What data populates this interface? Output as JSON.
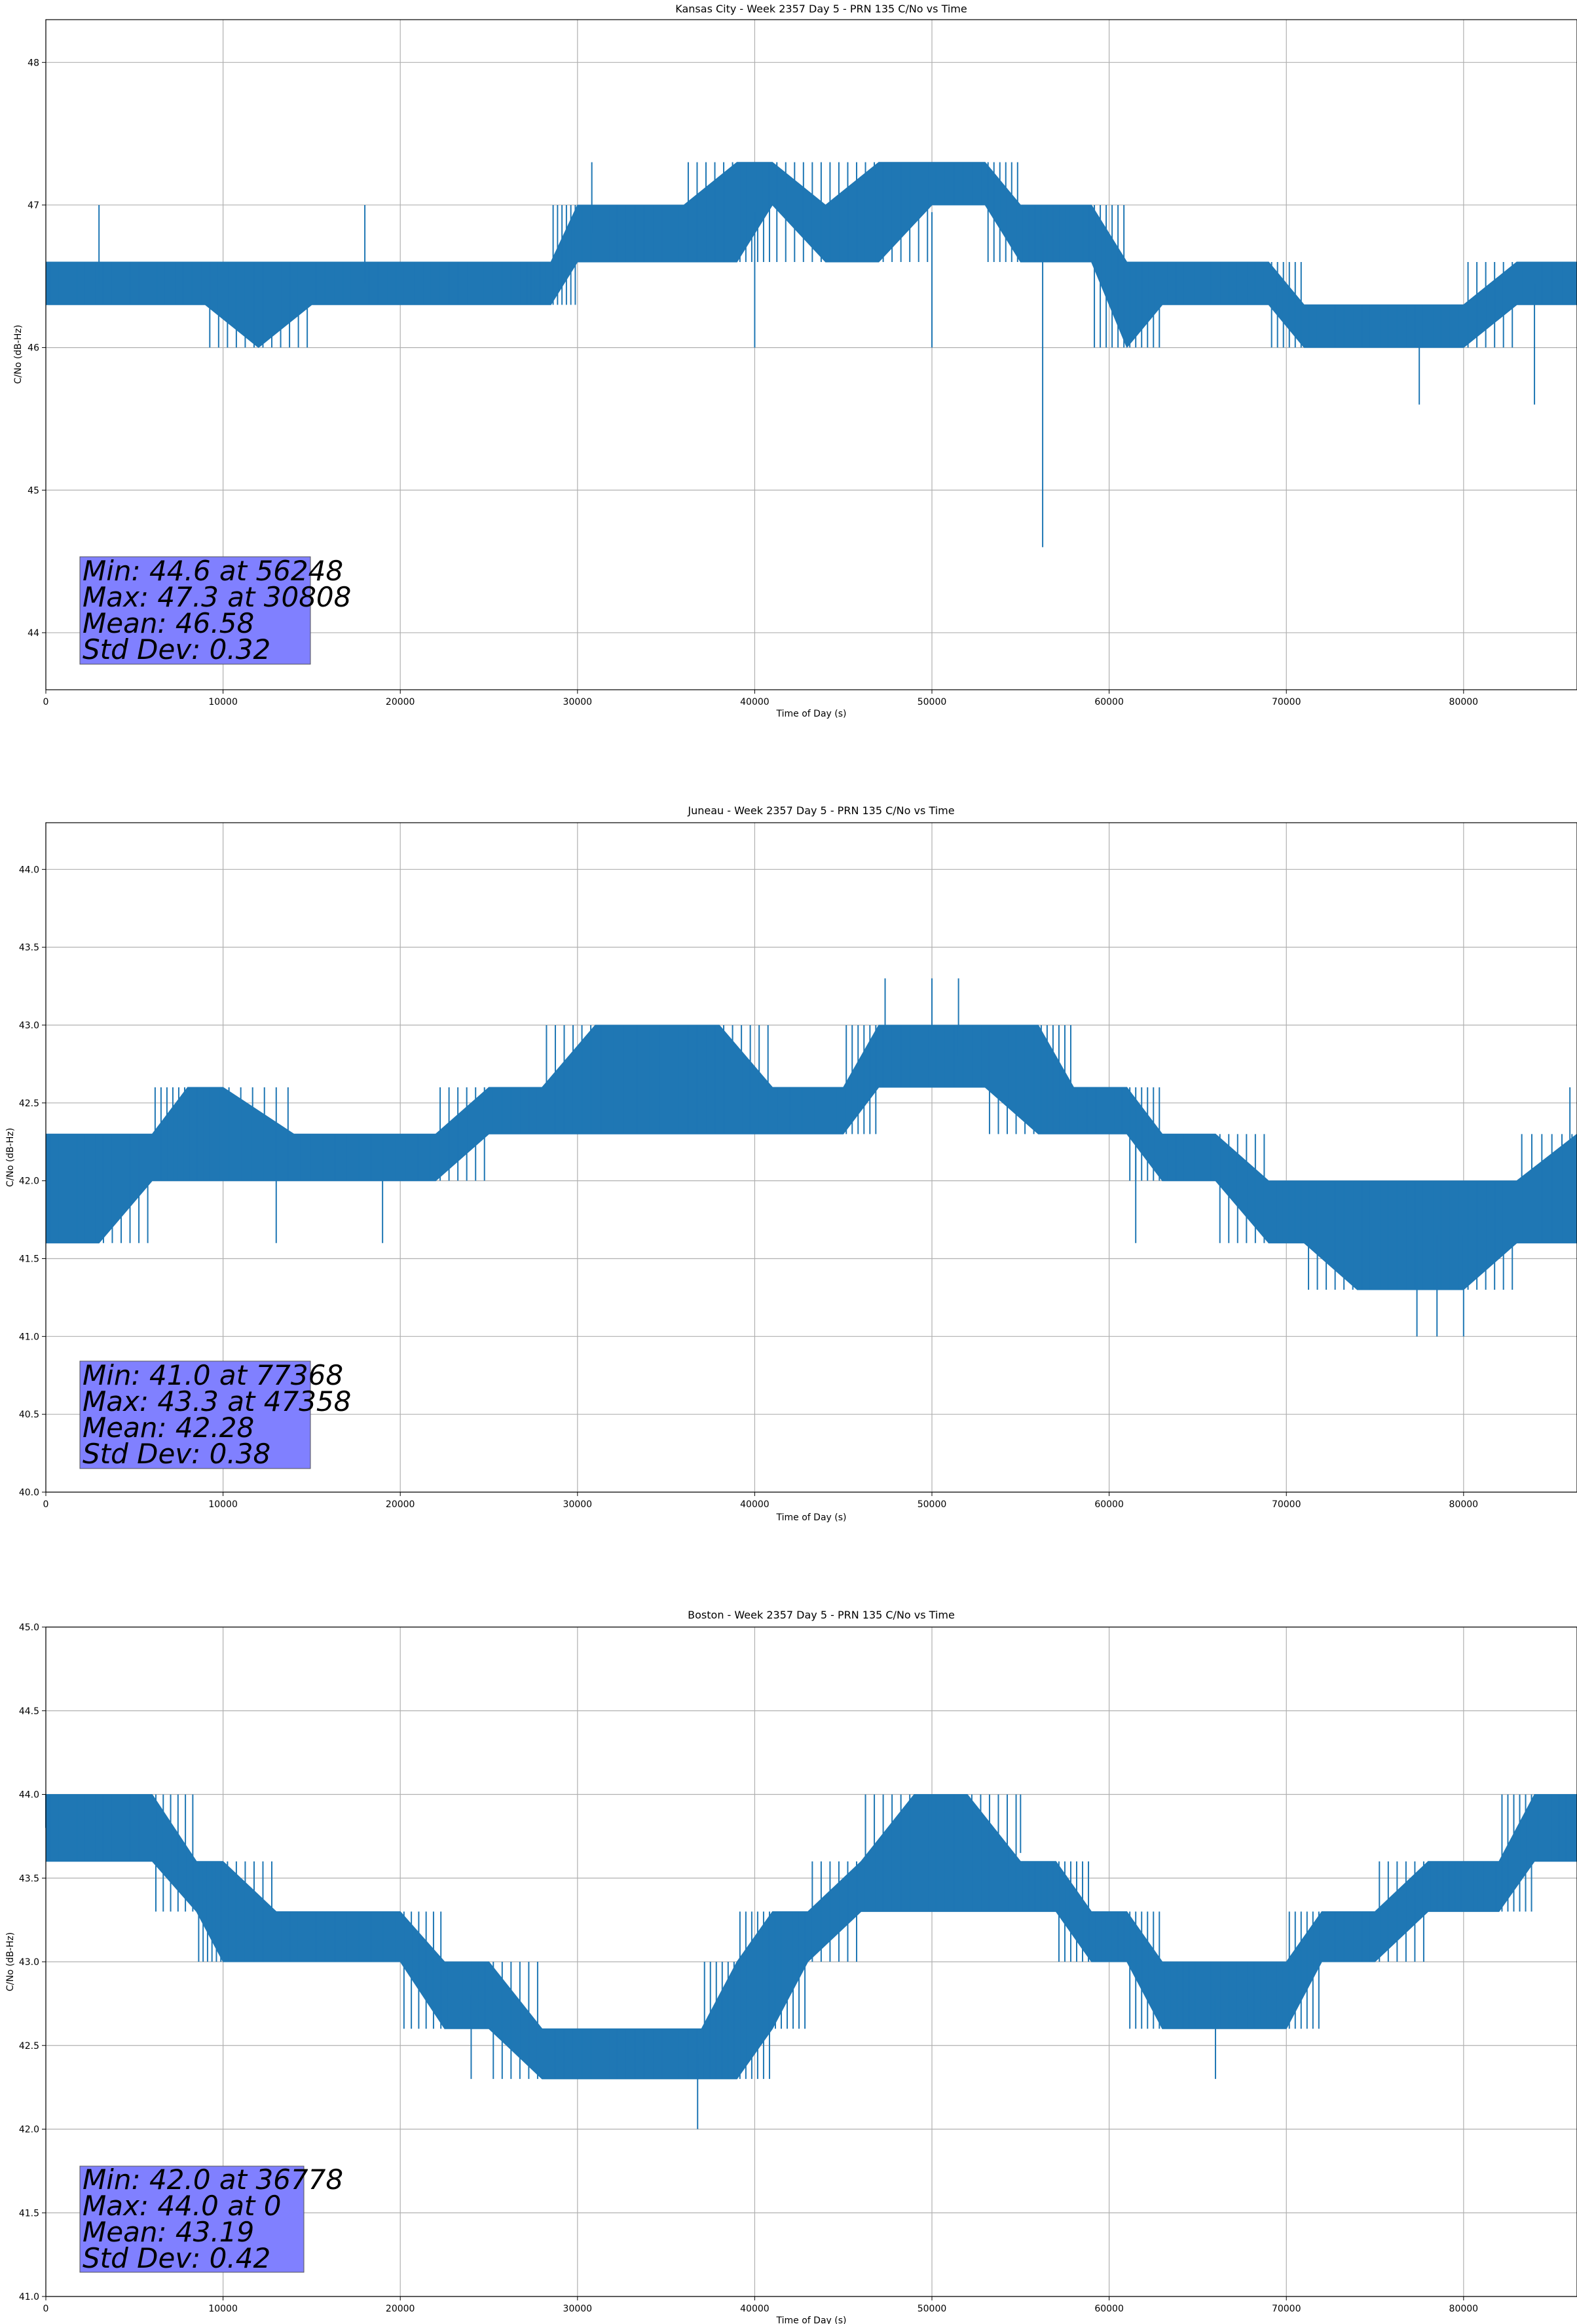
{
  "chart_data": [
    {
      "type": "line",
      "title": "Kansas City - Week 2357 Day 5 - PRN 135 C/No vs Time",
      "xlabel": "Time of Day (s)",
      "ylabel": "C/No (dB-Hz)",
      "xlim": [
        0,
        86400
      ],
      "ylim": [
        43.6,
        48.3
      ],
      "xticks": [
        0,
        10000,
        20000,
        30000,
        40000,
        50000,
        60000,
        70000,
        80000
      ],
      "yticks": [
        44,
        45,
        46,
        47,
        48
      ],
      "ytick_decimals": 0,
      "grid": true,
      "line_color": "#1f77b4",
      "series": [
        {
          "x": [
            0,
            3000,
            6000,
            9000,
            12000,
            15000,
            18000,
            21000,
            24000,
            27000,
            28500,
            30000,
            33000,
            36000,
            39000,
            41000,
            44000,
            47000,
            50000,
            53000,
            55000,
            57000,
            59000,
            61000,
            63000,
            66000,
            69000,
            71000,
            74000,
            77000,
            80000,
            83000,
            86400
          ],
          "low": [
            46.3,
            46.3,
            46.3,
            46.3,
            46.0,
            46.3,
            46.3,
            46.3,
            46.3,
            46.3,
            46.3,
            46.6,
            46.6,
            46.6,
            46.6,
            47.0,
            46.6,
            46.6,
            47.0,
            47.0,
            46.6,
            46.6,
            46.6,
            46.0,
            46.3,
            46.3,
            46.3,
            46.0,
            46.0,
            46.0,
            46.0,
            46.3,
            46.3
          ],
          "high": [
            46.6,
            46.6,
            46.6,
            46.6,
            46.6,
            46.6,
            46.6,
            46.6,
            46.6,
            46.6,
            46.6,
            47.0,
            47.0,
            47.0,
            47.3,
            47.3,
            47.0,
            47.3,
            47.3,
            47.3,
            47.0,
            47.0,
            47.0,
            46.6,
            46.6,
            46.6,
            46.6,
            46.3,
            46.3,
            46.3,
            46.3,
            46.6,
            46.6
          ],
          "spikes": [
            [
              56248,
              44.6
            ],
            [
              40000,
              46.0
            ],
            [
              50000,
              46.0
            ],
            [
              77500,
              45.6
            ],
            [
              84000,
              45.6
            ],
            [
              3000,
              47.0
            ],
            [
              18000,
              47.0
            ],
            [
              30808,
              47.3
            ]
          ]
        }
      ],
      "stats": {
        "min": "Min: 44.6 at 56248",
        "max": "Max: 47.3 at 30808",
        "mean": "Mean: 46.58",
        "std": "Std Dev: 0.32"
      }
    },
    {
      "type": "line",
      "title": "Juneau - Week 2357 Day 5 - PRN 135 C/No vs Time",
      "xlabel": "Time of Day (s)",
      "ylabel": "C/No (dB-Hz)",
      "xlim": [
        0,
        86400
      ],
      "ylim": [
        40.0,
        44.3
      ],
      "xticks": [
        0,
        10000,
        20000,
        30000,
        40000,
        50000,
        60000,
        70000,
        80000
      ],
      "yticks": [
        40.0,
        40.5,
        41.0,
        41.5,
        42.0,
        42.5,
        43.0,
        43.5,
        44.0
      ],
      "ytick_decimals": 1,
      "grid": true,
      "line_color": "#1f77b4",
      "series": [
        {
          "x": [
            0,
            3000,
            6000,
            8000,
            10000,
            14000,
            18000,
            22000,
            25000,
            28000,
            31000,
            35000,
            38000,
            41000,
            45000,
            47000,
            50000,
            53000,
            56000,
            58000,
            61000,
            63000,
            66000,
            69000,
            71000,
            74000,
            77000,
            80000,
            83000,
            86400
          ],
          "low": [
            41.6,
            41.6,
            42.0,
            42.0,
            42.0,
            42.0,
            42.0,
            42.0,
            42.3,
            42.3,
            42.3,
            42.3,
            42.3,
            42.3,
            42.3,
            42.6,
            42.6,
            42.6,
            42.3,
            42.3,
            42.3,
            42.0,
            42.0,
            41.6,
            41.6,
            41.3,
            41.3,
            41.3,
            41.6,
            41.6
          ],
          "high": [
            42.3,
            42.3,
            42.3,
            42.6,
            42.6,
            42.3,
            42.3,
            42.3,
            42.6,
            42.6,
            43.0,
            43.0,
            43.0,
            42.6,
            42.6,
            43.0,
            43.0,
            43.0,
            43.0,
            42.6,
            42.6,
            42.3,
            42.3,
            42.0,
            42.0,
            42.0,
            42.0,
            42.0,
            42.0,
            42.3
          ],
          "spikes": [
            [
              77368,
              41.0
            ],
            [
              78500,
              41.0
            ],
            [
              80000,
              41.0
            ],
            [
              47358,
              43.3
            ],
            [
              50000,
              43.3
            ],
            [
              51500,
              43.3
            ],
            [
              86000,
              42.6
            ],
            [
              13000,
              41.6
            ],
            [
              19000,
              41.6
            ],
            [
              61500,
              41.6
            ]
          ]
        }
      ],
      "stats": {
        "min": "Min: 41.0 at 77368",
        "max": "Max: 43.3 at 47358",
        "mean": "Mean: 42.28",
        "std": "Std Dev: 0.38"
      }
    },
    {
      "type": "line",
      "title": "Boston - Week 2357 Day 5 - PRN 135 C/No vs Time",
      "xlabel": "Time of Day (s)",
      "ylabel": "C/No (dB-Hz)",
      "xlim": [
        0,
        86400
      ],
      "ylim": [
        41.0,
        45.0
      ],
      "xticks": [
        0,
        10000,
        20000,
        30000,
        40000,
        50000,
        60000,
        70000,
        80000
      ],
      "yticks": [
        41.0,
        41.5,
        42.0,
        42.5,
        43.0,
        43.5,
        44.0,
        44.5,
        45.0
      ],
      "ytick_decimals": 1,
      "grid": true,
      "line_color": "#1f77b4",
      "series": [
        {
          "x": [
            0,
            3000,
            6000,
            8500,
            10000,
            13000,
            16000,
            20000,
            22500,
            25000,
            28000,
            31000,
            34000,
            37000,
            39000,
            41000,
            43000,
            46000,
            49000,
            52000,
            55000,
            57000,
            59000,
            61000,
            63000,
            65000,
            68000,
            70000,
            72000,
            75000,
            78000,
            80000,
            82000,
            84000,
            86400
          ],
          "low": [
            43.6,
            43.6,
            43.6,
            43.3,
            43.0,
            43.0,
            43.0,
            43.0,
            42.6,
            42.6,
            42.3,
            42.3,
            42.3,
            42.3,
            42.3,
            42.6,
            43.0,
            43.3,
            43.3,
            43.3,
            43.3,
            43.3,
            43.0,
            43.0,
            42.6,
            42.6,
            42.6,
            42.6,
            43.0,
            43.0,
            43.3,
            43.3,
            43.3,
            43.6,
            43.6
          ],
          "high": [
            44.0,
            44.0,
            44.0,
            43.6,
            43.6,
            43.3,
            43.3,
            43.3,
            43.0,
            43.0,
            42.6,
            42.6,
            42.6,
            42.6,
            43.0,
            43.3,
            43.3,
            43.6,
            44.0,
            44.0,
            43.6,
            43.6,
            43.3,
            43.3,
            43.0,
            43.0,
            43.0,
            43.0,
            43.3,
            43.3,
            43.6,
            43.6,
            43.6,
            44.0,
            44.0
          ],
          "spikes": [
            [
              36778,
              42.0
            ],
            [
              66000,
              42.3
            ],
            [
              24000,
              42.3
            ],
            [
              0,
              44.0
            ],
            [
              50000,
              44.0
            ],
            [
              55000,
              44.0
            ]
          ]
        }
      ],
      "stats": {
        "min": "Min: 42.0 at 36778",
        "max": "Max: 44.0 at 0",
        "mean": "Mean: 43.19",
        "std": "Std Dev: 0.42"
      }
    }
  ]
}
